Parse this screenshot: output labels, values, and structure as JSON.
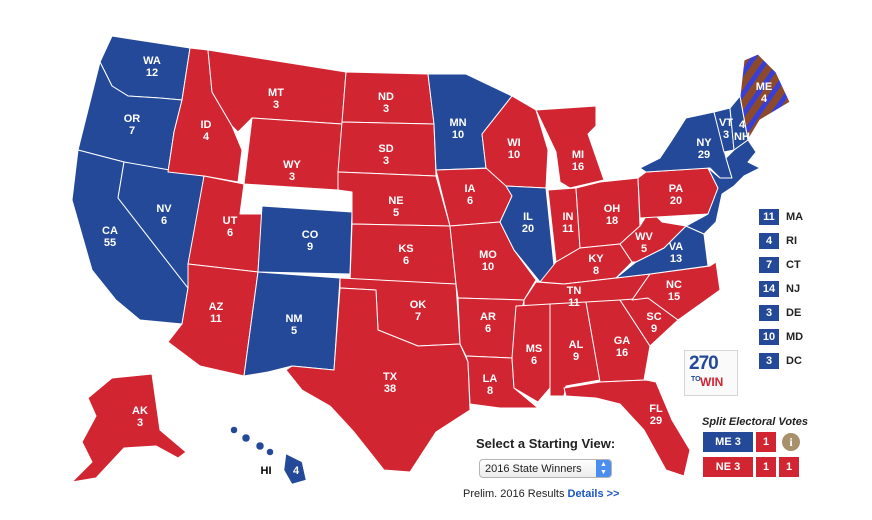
{
  "colors": {
    "dem": "#244999",
    "rep": "#d22532",
    "split_stripe": "#8c4a2a",
    "border": "#ffffff"
  },
  "states": {
    "WA": {
      "abbr": "WA",
      "ev": "12",
      "party": "dem"
    },
    "OR": {
      "abbr": "OR",
      "ev": "7",
      "party": "dem"
    },
    "CA": {
      "abbr": "CA",
      "ev": "55",
      "party": "dem"
    },
    "NV": {
      "abbr": "NV",
      "ev": "6",
      "party": "dem"
    },
    "ID": {
      "abbr": "ID",
      "ev": "4",
      "party": "rep"
    },
    "MT": {
      "abbr": "MT",
      "ev": "3",
      "party": "rep"
    },
    "WY": {
      "abbr": "WY",
      "ev": "3",
      "party": "rep"
    },
    "UT": {
      "abbr": "UT",
      "ev": "6",
      "party": "rep"
    },
    "CO": {
      "abbr": "CO",
      "ev": "9",
      "party": "dem"
    },
    "AZ": {
      "abbr": "AZ",
      "ev": "11",
      "party": "rep"
    },
    "NM": {
      "abbr": "NM",
      "ev": "5",
      "party": "dem"
    },
    "ND": {
      "abbr": "ND",
      "ev": "3",
      "party": "rep"
    },
    "SD": {
      "abbr": "SD",
      "ev": "3",
      "party": "rep"
    },
    "NE": {
      "abbr": "NE",
      "ev": "5",
      "party": "rep"
    },
    "KS": {
      "abbr": "KS",
      "ev": "6",
      "party": "rep"
    },
    "OK": {
      "abbr": "OK",
      "ev": "7",
      "party": "rep"
    },
    "TX": {
      "abbr": "TX",
      "ev": "38",
      "party": "rep"
    },
    "MN": {
      "abbr": "MN",
      "ev": "10",
      "party": "dem"
    },
    "IA": {
      "abbr": "IA",
      "ev": "6",
      "party": "rep"
    },
    "MO": {
      "abbr": "MO",
      "ev": "10",
      "party": "rep"
    },
    "AR": {
      "abbr": "AR",
      "ev": "6",
      "party": "rep"
    },
    "LA": {
      "abbr": "LA",
      "ev": "8",
      "party": "rep"
    },
    "WI": {
      "abbr": "WI",
      "ev": "10",
      "party": "rep"
    },
    "IL": {
      "abbr": "IL",
      "ev": "20",
      "party": "dem"
    },
    "MI": {
      "abbr": "MI",
      "ev": "16",
      "party": "rep"
    },
    "IN": {
      "abbr": "IN",
      "ev": "11",
      "party": "rep"
    },
    "OH": {
      "abbr": "OH",
      "ev": "18",
      "party": "rep"
    },
    "KY": {
      "abbr": "KY",
      "ev": "8",
      "party": "rep"
    },
    "TN": {
      "abbr": "TN",
      "ev": "11",
      "party": "rep"
    },
    "MS": {
      "abbr": "MS",
      "ev": "6",
      "party": "rep"
    },
    "AL": {
      "abbr": "AL",
      "ev": "9",
      "party": "rep"
    },
    "GA": {
      "abbr": "GA",
      "ev": "16",
      "party": "rep"
    },
    "FL": {
      "abbr": "FL",
      "ev": "29",
      "party": "rep"
    },
    "SC": {
      "abbr": "SC",
      "ev": "9",
      "party": "rep"
    },
    "NC": {
      "abbr": "NC",
      "ev": "15",
      "party": "rep"
    },
    "VA": {
      "abbr": "VA",
      "ev": "13",
      "party": "dem"
    },
    "WV": {
      "abbr": "WV",
      "ev": "5",
      "party": "rep"
    },
    "PA": {
      "abbr": "PA",
      "ev": "20",
      "party": "rep"
    },
    "NY": {
      "abbr": "NY",
      "ev": "29",
      "party": "dem"
    },
    "VT": {
      "abbr": "VT",
      "ev": "3",
      "party": "dem"
    },
    "NH": {
      "abbr": "NH",
      "ev": "4",
      "party": "dem"
    },
    "ME": {
      "abbr": "ME",
      "ev": "4",
      "party": "split"
    },
    "AK": {
      "abbr": "AK",
      "ev": "3",
      "party": "rep"
    },
    "HI": {
      "abbr": "HI",
      "ev": "4",
      "party": "dem"
    }
  },
  "small_states": [
    {
      "ev": "11",
      "abbr": "MA"
    },
    {
      "ev": "4",
      "abbr": "RI"
    },
    {
      "ev": "7",
      "abbr": "CT"
    },
    {
      "ev": "14",
      "abbr": "NJ"
    },
    {
      "ev": "3",
      "abbr": "DE"
    },
    {
      "ev": "10",
      "abbr": "MD"
    },
    {
      "ev": "3",
      "abbr": "DC"
    }
  ],
  "logo": {
    "number": "270",
    "to": "TO",
    "win": "WIN"
  },
  "split": {
    "title": "Split Electoral Votes",
    "me": {
      "state": "ME 3",
      "d1": "1",
      "info": "i"
    },
    "ne": {
      "state": "NE 3",
      "d1": "1",
      "d2": "1"
    }
  },
  "starting_view": {
    "title": "Select a Starting View:",
    "selected": "2016 State Winners",
    "results_text": "Prelim. 2016 Results",
    "details_link": "Details >>"
  }
}
